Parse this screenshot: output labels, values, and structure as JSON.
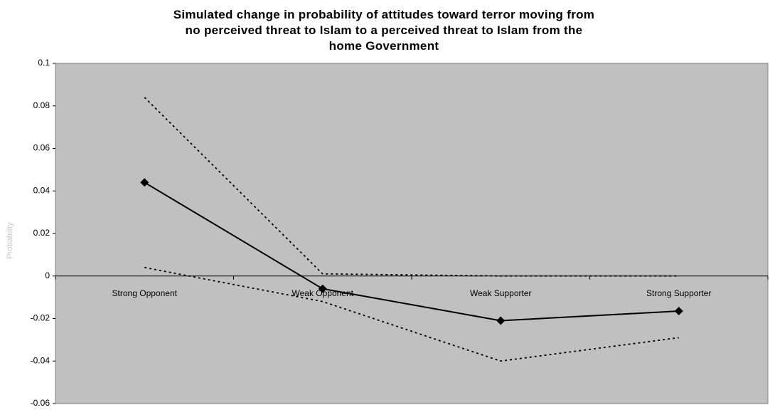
{
  "chart_data": {
    "type": "line",
    "title": "Simulated change in probability of attitudes toward terror moving from no perceived threat to Islam to a perceived threat to Islam from the home Government",
    "y_label": "Probability",
    "categories": [
      "Strong Opponent",
      "Weak Opponent",
      "Weak Supporter",
      "Strong Supporter"
    ],
    "series": [
      {
        "color": "#000000",
        "style": "solid",
        "marker": "diamond",
        "values": [
          0.044,
          -0.006,
          -0.021,
          -0.0165
        ]
      },
      {
        "color": "#000000",
        "style": "dotted",
        "values": [
          0.084,
          0.001,
          0,
          0
        ]
      },
      {
        "color": "#000000",
        "style": "dotted",
        "values": [
          0.004,
          -0.012,
          -0.04,
          -0.029
        ]
      }
    ],
    "ylim": [
      -0.06,
      0.1
    ],
    "yticks": [
      {
        "value": 0.1,
        "label": "0.1"
      },
      0.08,
      0.06,
      0.04,
      0.02,
      0,
      -0.02,
      -0.04,
      -0.06
    ],
    "background": "#c0c0c0"
  }
}
